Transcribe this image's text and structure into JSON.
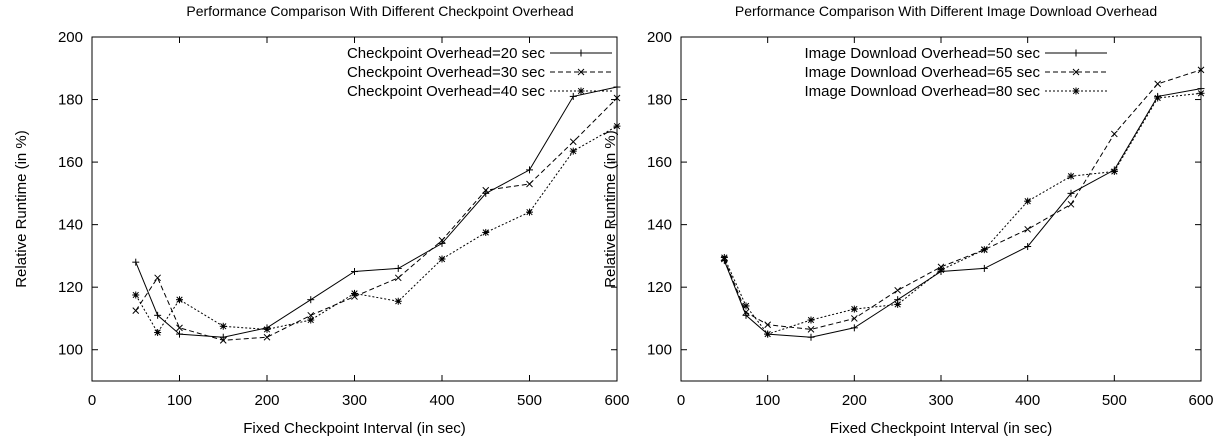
{
  "chart_data": [
    {
      "type": "line",
      "title": "Performance Comparison With Different Checkpoint Overhead",
      "xlabel": "Fixed Checkpoint Interval (in sec)",
      "ylabel": "Relative Runtime (in %)",
      "xlim": [
        0,
        600
      ],
      "ylim": [
        90,
        200
      ],
      "xticks": [
        "0",
        "100",
        "200",
        "300",
        "400",
        "500",
        "600"
      ],
      "yticks": [
        "100",
        "120",
        "140",
        "160",
        "180",
        "200"
      ],
      "grid": false,
      "legend_position": "top-right",
      "x": [
        50,
        75,
        100,
        150,
        200,
        250,
        300,
        350,
        400,
        450,
        500,
        550,
        600
      ],
      "series": [
        {
          "name": "Checkpoint Overhead=20 sec",
          "marker": "plus",
          "dash": "solid",
          "values": [
            128,
            111,
            105,
            104,
            107,
            116,
            125,
            126,
            134,
            150,
            157.5,
            181,
            184
          ]
        },
        {
          "name": "Checkpoint Overhead=30 sec",
          "marker": "cross",
          "dash": "dashed",
          "values": [
            112.5,
            123,
            107,
            103,
            104,
            111,
            117,
            123,
            135,
            151,
            153,
            166.5,
            180.5
          ]
        },
        {
          "name": "Checkpoint Overhead=40 sec",
          "marker": "star",
          "dash": "dotted",
          "values": [
            117.5,
            105.5,
            116,
            107.5,
            106.5,
            109.5,
            118,
            115.5,
            129,
            137.5,
            144,
            163.5,
            171.5
          ]
        }
      ]
    },
    {
      "type": "line",
      "title": "Performance Comparison With Different Image Download Overhead",
      "xlabel": "Fixed Checkpoint Interval (in sec)",
      "ylabel": "Relative Runtime (in %)",
      "xlim": [
        0,
        600
      ],
      "ylim": [
        90,
        200
      ],
      "xticks": [
        "0",
        "100",
        "200",
        "300",
        "400",
        "500",
        "600"
      ],
      "yticks": [
        "100",
        "120",
        "140",
        "160",
        "180",
        "200"
      ],
      "grid": false,
      "legend_position": "top-right",
      "x": [
        50,
        75,
        100,
        150,
        200,
        250,
        300,
        350,
        400,
        450,
        500,
        550,
        600
      ],
      "series": [
        {
          "name": "Image Download Overhead=50 sec",
          "marker": "plus",
          "dash": "solid",
          "values": [
            128.5,
            111,
            105,
            104,
            107,
            116,
            125,
            126,
            133,
            150,
            157.5,
            181,
            183.5
          ]
        },
        {
          "name": "Image Download Overhead=65 sec",
          "marker": "cross",
          "dash": "dashed",
          "values": [
            129,
            112,
            108,
            106.5,
            110,
            119,
            126.5,
            132,
            138.5,
            146.5,
            169,
            185,
            189.5
          ]
        },
        {
          "name": "Image Download Overhead=80 sec",
          "marker": "star",
          "dash": "dotted",
          "values": [
            129.5,
            114,
            105,
            109.5,
            113,
            114.5,
            125.5,
            132,
            147.5,
            155.5,
            157,
            180.5,
            182
          ]
        }
      ]
    }
  ]
}
